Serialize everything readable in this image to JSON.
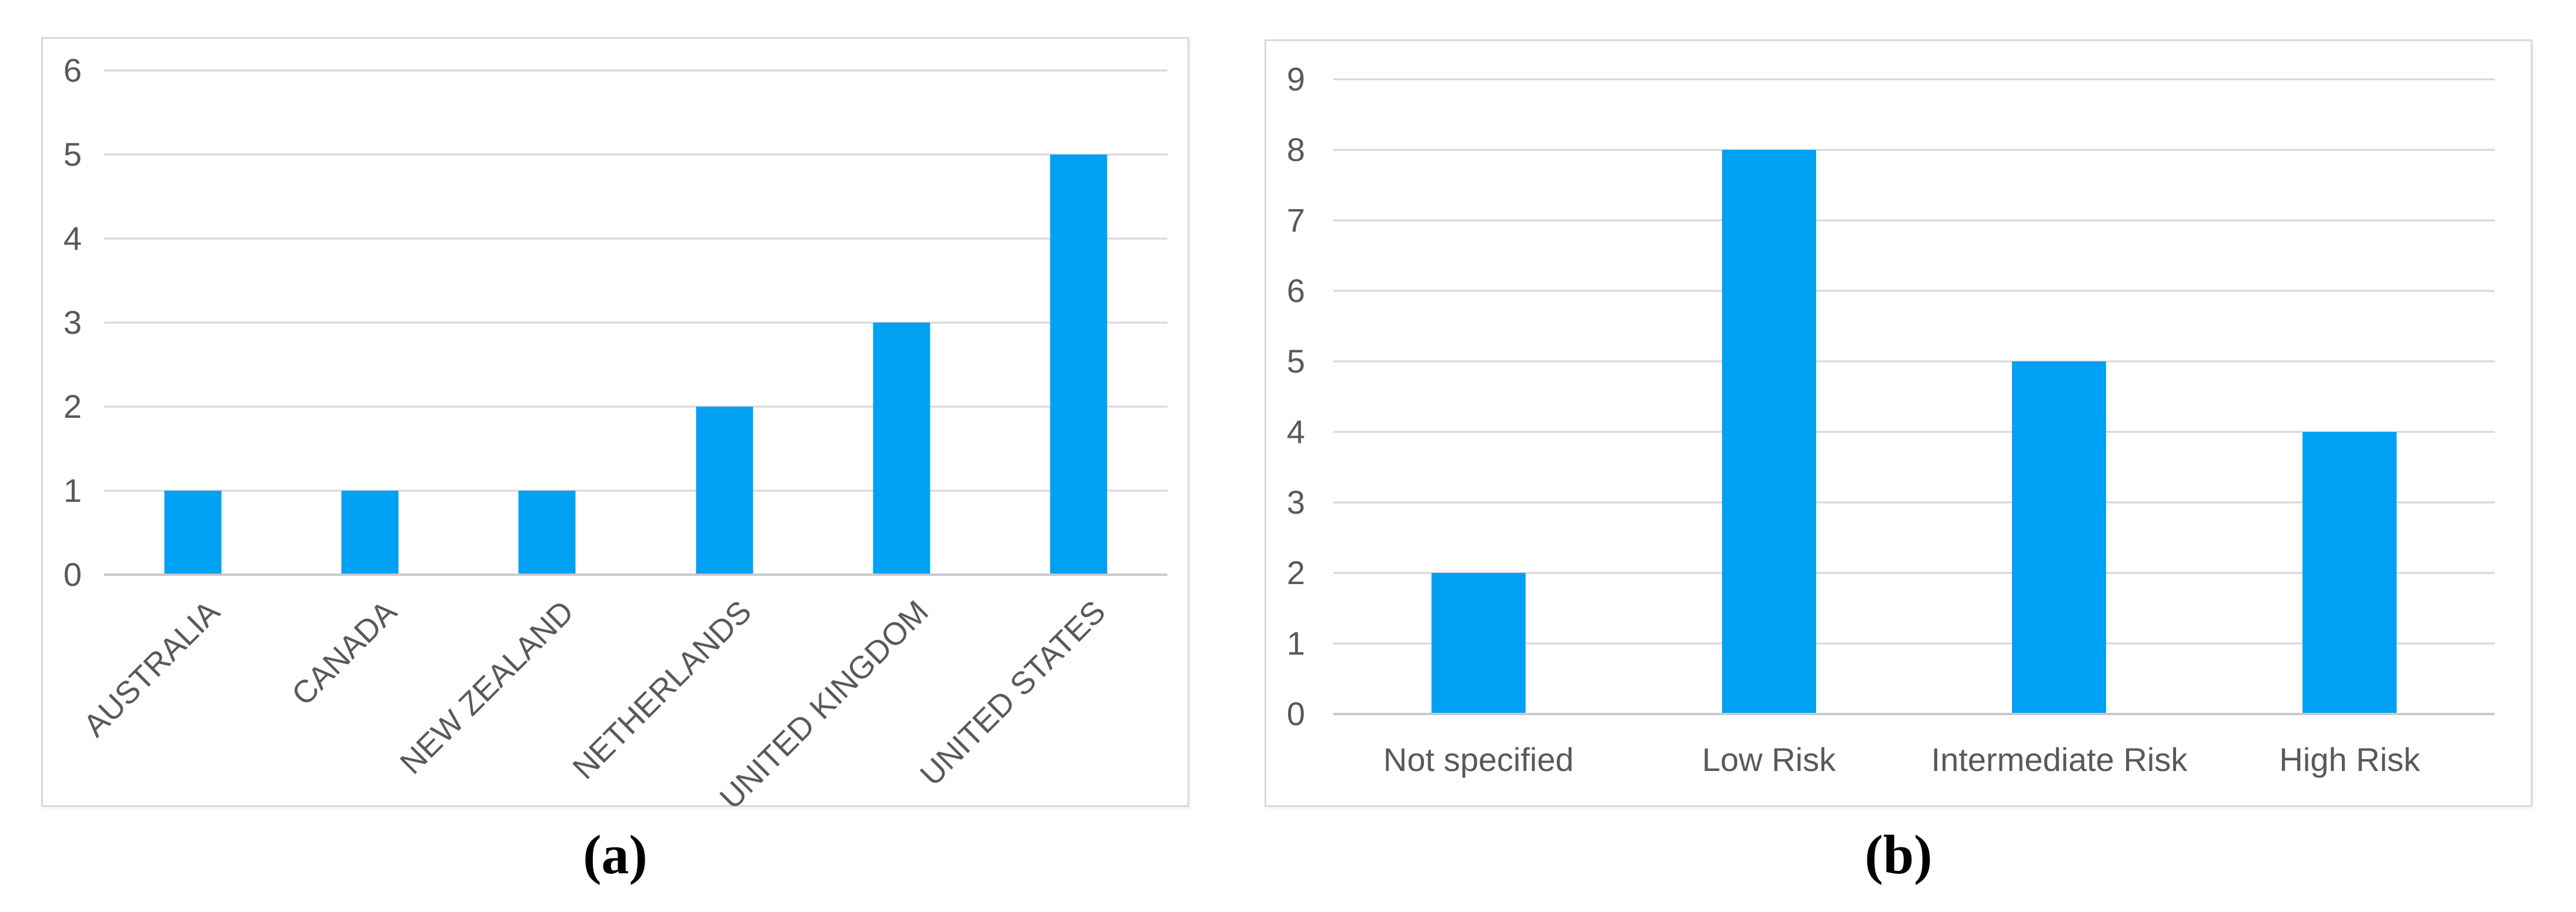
{
  "colors": {
    "bar_fill": "#00A1F3",
    "gridline": "#D6D6D6",
    "axis_line": "#C9C9C9",
    "tick_text": "#595959",
    "panel_border": "#D9D9D9"
  },
  "chart_data": [
    {
      "type": "bar",
      "title": "",
      "caption": "(a)",
      "categories": [
        "AUSTRALIA",
        "CANADA",
        "NEW ZEALAND",
        "NETHERLANDS",
        "UNITED KINGDOM",
        "UNITED STATES"
      ],
      "values": [
        1,
        1,
        1,
        2,
        3,
        5
      ],
      "xlabel": "",
      "ylabel": "",
      "ylim": [
        0,
        6
      ],
      "ytick_step": 1,
      "yticks": [
        0,
        1,
        2,
        3,
        4,
        5,
        6
      ],
      "grid": true,
      "legend": false,
      "x_tick_rotation_deg": 45
    },
    {
      "type": "bar",
      "title": "",
      "caption": "(b)",
      "categories": [
        "Not specified",
        "Low Risk",
        "Intermediate Risk",
        "High Risk"
      ],
      "values": [
        2,
        8,
        5,
        4
      ],
      "xlabel": "",
      "ylabel": "",
      "ylim": [
        0,
        9
      ],
      "ytick_step": 1,
      "yticks": [
        0,
        1,
        2,
        3,
        4,
        5,
        6,
        7,
        8,
        9
      ],
      "grid": true,
      "legend": false,
      "x_tick_rotation_deg": 0
    }
  ]
}
